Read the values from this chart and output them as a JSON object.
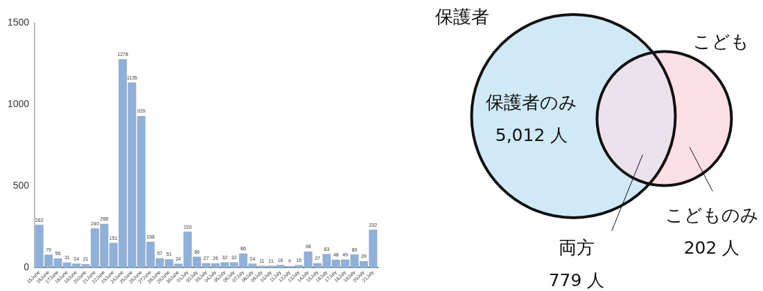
{
  "chart_data": [
    {
      "type": "bar",
      "categories": [
        "15June",
        "16June",
        "17June",
        "18June",
        "19June",
        "20June",
        "21June",
        "22June",
        "23June",
        "24June",
        "25June",
        "26June",
        "27June",
        "28June",
        "29June",
        "30June",
        "01July",
        "02July",
        "03July",
        "04July",
        "05July",
        "06July",
        "07July",
        "08July",
        "09July",
        "10July",
        "11July",
        "12July",
        "13July",
        "14July",
        "15July",
        "16July",
        "17July",
        "18July",
        "19July",
        "20July",
        "21July"
      ],
      "values": [
        262,
        79,
        56,
        31,
        24,
        21,
        240,
        268,
        151,
        1278,
        1135,
        929,
        158,
        57,
        51,
        24,
        220,
        66,
        27,
        26,
        32,
        32,
        86,
        24,
        11,
        11,
        16,
        9,
        15,
        98,
        27,
        83,
        48,
        49,
        80,
        39,
        232
      ],
      "color": "#8fb0d9",
      "ylim": [
        0,
        1500
      ],
      "yticks": [
        0,
        500,
        1000,
        1500
      ],
      "data_labels": true
    },
    {
      "type": "other",
      "categories": [
        "保護者のみ",
        "両方",
        "こどものみ"
      ],
      "values": [
        5012,
        779,
        202
      ],
      "value_labels": [
        "5,012 人",
        "779 人",
        "202 人"
      ],
      "colors": [
        "#cfe9f6",
        "#ece2ec",
        "#fde0e5"
      ],
      "annotations": [
        "保護者",
        "こども"
      ]
    }
  ]
}
